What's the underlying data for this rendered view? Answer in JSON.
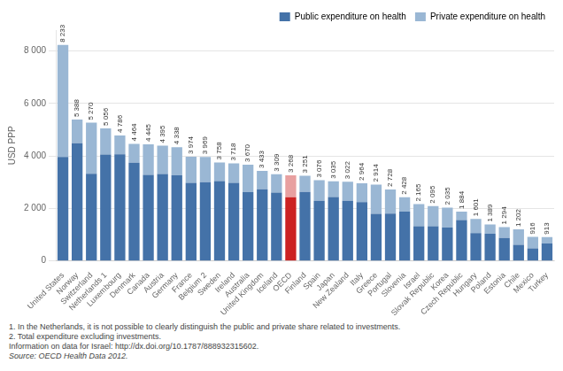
{
  "chart_data": {
    "type": "bar",
    "stacked": true,
    "categories": [
      "United States",
      "Norway",
      "Switzerland",
      "Netherlands 1",
      "Luxembourg",
      "Denmark",
      "Canada",
      "Austria",
      "Germany",
      "France",
      "Belgium 2",
      "Sweden",
      "Ireland",
      "Australia",
      "United Kingdom",
      "Iceland",
      "OECD",
      "Finland",
      "Spain",
      "Japan",
      "New Zealand",
      "Italy",
      "Greece",
      "Portugal",
      "Slovenia",
      "Israel",
      "Slovak Republic",
      "Korea",
      "Czech Republic",
      "Hungary",
      "Poland",
      "Estonia",
      "Chile",
      "Mexico",
      "Turkey"
    ],
    "series": [
      {
        "name": "Public expenditure on health",
        "color": "#4472a8",
        "colors": [
          "#4472a8",
          "#4472a8",
          "#4472a8",
          "#4472a8",
          "#4472a8",
          "#4472a8",
          "#4472a8",
          "#4472a8",
          "#4472a8",
          "#4472a8",
          "#4472a8",
          "#4472a8",
          "#4472a8",
          "#4472a8",
          "#4472a8",
          "#4472a8",
          "#cc2222",
          "#4472a8",
          "#4472a8",
          "#4472a8",
          "#4472a8",
          "#4472a8",
          "#4472a8",
          "#4472a8",
          "#4472a8",
          "#4472a8",
          "#4472a8",
          "#4472a8",
          "#4472a8",
          "#4472a8",
          "#4472a8",
          "#4472a8",
          "#4472a8",
          "#4472a8",
          "#4472a8"
        ],
        "values": [
          3967,
          4485,
          3325,
          4056,
          4064,
          3747,
          3281,
          3316,
          3267,
          2974,
          3003,
          3042,
          2977,
          2621,
          2731,
          2603,
          2427,
          2631,
          2298,
          2436,
          2296,
          2241,
          1797,
          1808,
          1881,
          1322,
          1323,
          1274,
          1560,
          1066,
          1038,
          878,
          615,
          482,
          664
        ]
      },
      {
        "name": "Private expenditure on health",
        "color": "#9ab7d4",
        "colors": [
          "#9ab7d4",
          "#9ab7d4",
          "#9ab7d4",
          "#9ab7d4",
          "#9ab7d4",
          "#9ab7d4",
          "#9ab7d4",
          "#9ab7d4",
          "#9ab7d4",
          "#9ab7d4",
          "#9ab7d4",
          "#9ab7d4",
          "#9ab7d4",
          "#9ab7d4",
          "#9ab7d4",
          "#9ab7d4",
          "#e8a0a0",
          "#9ab7d4",
          "#9ab7d4",
          "#9ab7d4",
          "#9ab7d4",
          "#9ab7d4",
          "#9ab7d4",
          "#9ab7d4",
          "#9ab7d4",
          "#9ab7d4",
          "#9ab7d4",
          "#9ab7d4",
          "#9ab7d4",
          "#9ab7d4",
          "#9ab7d4",
          "#9ab7d4",
          "#9ab7d4",
          "#9ab7d4",
          "#9ab7d4"
        ],
        "values": [
          4266,
          903,
          1945,
          1000,
          722,
          717,
          1164,
          1079,
          1071,
          1000,
          966,
          716,
          741,
          1049,
          702,
          706,
          841,
          620,
          778,
          599,
          726,
          723,
          1117,
          920,
          547,
          843,
          772,
          761,
          324,
          535,
          351,
          416,
          587,
          434,
          249
        ]
      }
    ],
    "totals": [
      8233,
      5388,
      5270,
      5056,
      4786,
      4464,
      4445,
      4395,
      4338,
      3974,
      3969,
      3758,
      3718,
      3670,
      3433,
      3309,
      3268,
      3251,
      3076,
      3035,
      3022,
      2964,
      2914,
      2728,
      2428,
      2165,
      2095,
      2035,
      1884,
      1601,
      1389,
      1294,
      1202,
      916,
      913
    ],
    "total_labels": [
      "8 233",
      "5 388",
      "5 270",
      "5 056",
      "4 786",
      "4 464",
      "4 445",
      "4 395",
      "4 338",
      "3 974",
      "3 969",
      "3 758",
      "3 718",
      "3 670",
      "3 433",
      "3 309",
      "3 268",
      "3 251",
      "3 076",
      "3 035",
      "3 022",
      "2 964",
      "2 914",
      "2 728",
      "2 428",
      "2 165",
      "2 095",
      "2 035",
      "1 884",
      "1 601",
      "1 389",
      "1 294",
      "1 202",
      "916",
      "913"
    ],
    "y_label": "USD PPP",
    "ylim": [
      0,
      8800
    ],
    "yticks": [
      0,
      {
        "value": 2000,
        "label": "2 000"
      },
      {
        "value": 4000,
        "label": "4 000"
      },
      {
        "value": 6000,
        "label": "6 000"
      },
      {
        "value": 8000,
        "label": "8 000"
      }
    ],
    "grid": true,
    "legend": "upper right",
    "annotations": [
      "1.  In the Netherlands, it is not possible to clearly distinguish the public and private share related to investments.",
      "2.  Total expenditure excluding investments.",
      "Information on data for Israel: http://dx.doi.org/10.1787/888932315602.",
      "Source: OECD Health Data 2012."
    ]
  }
}
